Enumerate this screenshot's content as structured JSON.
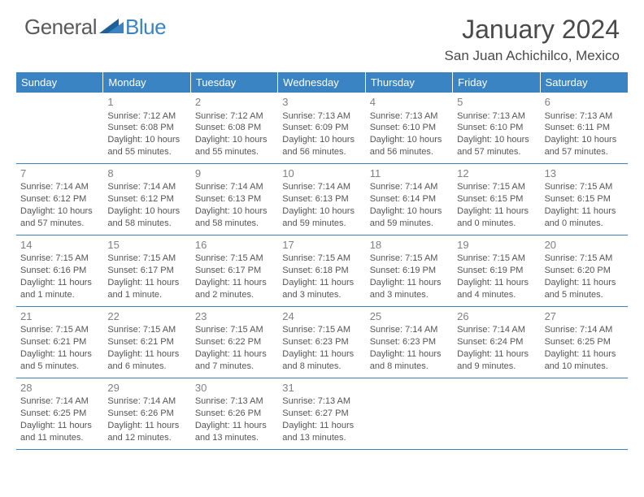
{
  "logo": {
    "text1": "General",
    "text2": "Blue"
  },
  "title": "January 2024",
  "location": "San Juan Achichilco, Mexico",
  "header_bg": "#3a84c4",
  "header_fg": "#ffffff",
  "border_color": "#3a84c4",
  "text_color": "#555555",
  "weekdays": [
    "Sunday",
    "Monday",
    "Tuesday",
    "Wednesday",
    "Thursday",
    "Friday",
    "Saturday"
  ],
  "weeks": [
    [
      {
        "num": "",
        "l1": "",
        "l2": "",
        "l3": "",
        "l4": ""
      },
      {
        "num": "1",
        "l1": "Sunrise: 7:12 AM",
        "l2": "Sunset: 6:08 PM",
        "l3": "Daylight: 10 hours",
        "l4": "and 55 minutes."
      },
      {
        "num": "2",
        "l1": "Sunrise: 7:12 AM",
        "l2": "Sunset: 6:08 PM",
        "l3": "Daylight: 10 hours",
        "l4": "and 55 minutes."
      },
      {
        "num": "3",
        "l1": "Sunrise: 7:13 AM",
        "l2": "Sunset: 6:09 PM",
        "l3": "Daylight: 10 hours",
        "l4": "and 56 minutes."
      },
      {
        "num": "4",
        "l1": "Sunrise: 7:13 AM",
        "l2": "Sunset: 6:10 PM",
        "l3": "Daylight: 10 hours",
        "l4": "and 56 minutes."
      },
      {
        "num": "5",
        "l1": "Sunrise: 7:13 AM",
        "l2": "Sunset: 6:10 PM",
        "l3": "Daylight: 10 hours",
        "l4": "and 57 minutes."
      },
      {
        "num": "6",
        "l1": "Sunrise: 7:13 AM",
        "l2": "Sunset: 6:11 PM",
        "l3": "Daylight: 10 hours",
        "l4": "and 57 minutes."
      }
    ],
    [
      {
        "num": "7",
        "l1": "Sunrise: 7:14 AM",
        "l2": "Sunset: 6:12 PM",
        "l3": "Daylight: 10 hours",
        "l4": "and 57 minutes."
      },
      {
        "num": "8",
        "l1": "Sunrise: 7:14 AM",
        "l2": "Sunset: 6:12 PM",
        "l3": "Daylight: 10 hours",
        "l4": "and 58 minutes."
      },
      {
        "num": "9",
        "l1": "Sunrise: 7:14 AM",
        "l2": "Sunset: 6:13 PM",
        "l3": "Daylight: 10 hours",
        "l4": "and 58 minutes."
      },
      {
        "num": "10",
        "l1": "Sunrise: 7:14 AM",
        "l2": "Sunset: 6:13 PM",
        "l3": "Daylight: 10 hours",
        "l4": "and 59 minutes."
      },
      {
        "num": "11",
        "l1": "Sunrise: 7:14 AM",
        "l2": "Sunset: 6:14 PM",
        "l3": "Daylight: 10 hours",
        "l4": "and 59 minutes."
      },
      {
        "num": "12",
        "l1": "Sunrise: 7:15 AM",
        "l2": "Sunset: 6:15 PM",
        "l3": "Daylight: 11 hours",
        "l4": "and 0 minutes."
      },
      {
        "num": "13",
        "l1": "Sunrise: 7:15 AM",
        "l2": "Sunset: 6:15 PM",
        "l3": "Daylight: 11 hours",
        "l4": "and 0 minutes."
      }
    ],
    [
      {
        "num": "14",
        "l1": "Sunrise: 7:15 AM",
        "l2": "Sunset: 6:16 PM",
        "l3": "Daylight: 11 hours",
        "l4": "and 1 minute."
      },
      {
        "num": "15",
        "l1": "Sunrise: 7:15 AM",
        "l2": "Sunset: 6:17 PM",
        "l3": "Daylight: 11 hours",
        "l4": "and 1 minute."
      },
      {
        "num": "16",
        "l1": "Sunrise: 7:15 AM",
        "l2": "Sunset: 6:17 PM",
        "l3": "Daylight: 11 hours",
        "l4": "and 2 minutes."
      },
      {
        "num": "17",
        "l1": "Sunrise: 7:15 AM",
        "l2": "Sunset: 6:18 PM",
        "l3": "Daylight: 11 hours",
        "l4": "and 3 minutes."
      },
      {
        "num": "18",
        "l1": "Sunrise: 7:15 AM",
        "l2": "Sunset: 6:19 PM",
        "l3": "Daylight: 11 hours",
        "l4": "and 3 minutes."
      },
      {
        "num": "19",
        "l1": "Sunrise: 7:15 AM",
        "l2": "Sunset: 6:19 PM",
        "l3": "Daylight: 11 hours",
        "l4": "and 4 minutes."
      },
      {
        "num": "20",
        "l1": "Sunrise: 7:15 AM",
        "l2": "Sunset: 6:20 PM",
        "l3": "Daylight: 11 hours",
        "l4": "and 5 minutes."
      }
    ],
    [
      {
        "num": "21",
        "l1": "Sunrise: 7:15 AM",
        "l2": "Sunset: 6:21 PM",
        "l3": "Daylight: 11 hours",
        "l4": "and 5 minutes."
      },
      {
        "num": "22",
        "l1": "Sunrise: 7:15 AM",
        "l2": "Sunset: 6:21 PM",
        "l3": "Daylight: 11 hours",
        "l4": "and 6 minutes."
      },
      {
        "num": "23",
        "l1": "Sunrise: 7:15 AM",
        "l2": "Sunset: 6:22 PM",
        "l3": "Daylight: 11 hours",
        "l4": "and 7 minutes."
      },
      {
        "num": "24",
        "l1": "Sunrise: 7:15 AM",
        "l2": "Sunset: 6:23 PM",
        "l3": "Daylight: 11 hours",
        "l4": "and 8 minutes."
      },
      {
        "num": "25",
        "l1": "Sunrise: 7:14 AM",
        "l2": "Sunset: 6:23 PM",
        "l3": "Daylight: 11 hours",
        "l4": "and 8 minutes."
      },
      {
        "num": "26",
        "l1": "Sunrise: 7:14 AM",
        "l2": "Sunset: 6:24 PM",
        "l3": "Daylight: 11 hours",
        "l4": "and 9 minutes."
      },
      {
        "num": "27",
        "l1": "Sunrise: 7:14 AM",
        "l2": "Sunset: 6:25 PM",
        "l3": "Daylight: 11 hours",
        "l4": "and 10 minutes."
      }
    ],
    [
      {
        "num": "28",
        "l1": "Sunrise: 7:14 AM",
        "l2": "Sunset: 6:25 PM",
        "l3": "Daylight: 11 hours",
        "l4": "and 11 minutes."
      },
      {
        "num": "29",
        "l1": "Sunrise: 7:14 AM",
        "l2": "Sunset: 6:26 PM",
        "l3": "Daylight: 11 hours",
        "l4": "and 12 minutes."
      },
      {
        "num": "30",
        "l1": "Sunrise: 7:13 AM",
        "l2": "Sunset: 6:26 PM",
        "l3": "Daylight: 11 hours",
        "l4": "and 13 minutes."
      },
      {
        "num": "31",
        "l1": "Sunrise: 7:13 AM",
        "l2": "Sunset: 6:27 PM",
        "l3": "Daylight: 11 hours",
        "l4": "and 13 minutes."
      },
      {
        "num": "",
        "l1": "",
        "l2": "",
        "l3": "",
        "l4": ""
      },
      {
        "num": "",
        "l1": "",
        "l2": "",
        "l3": "",
        "l4": ""
      },
      {
        "num": "",
        "l1": "",
        "l2": "",
        "l3": "",
        "l4": ""
      }
    ]
  ]
}
